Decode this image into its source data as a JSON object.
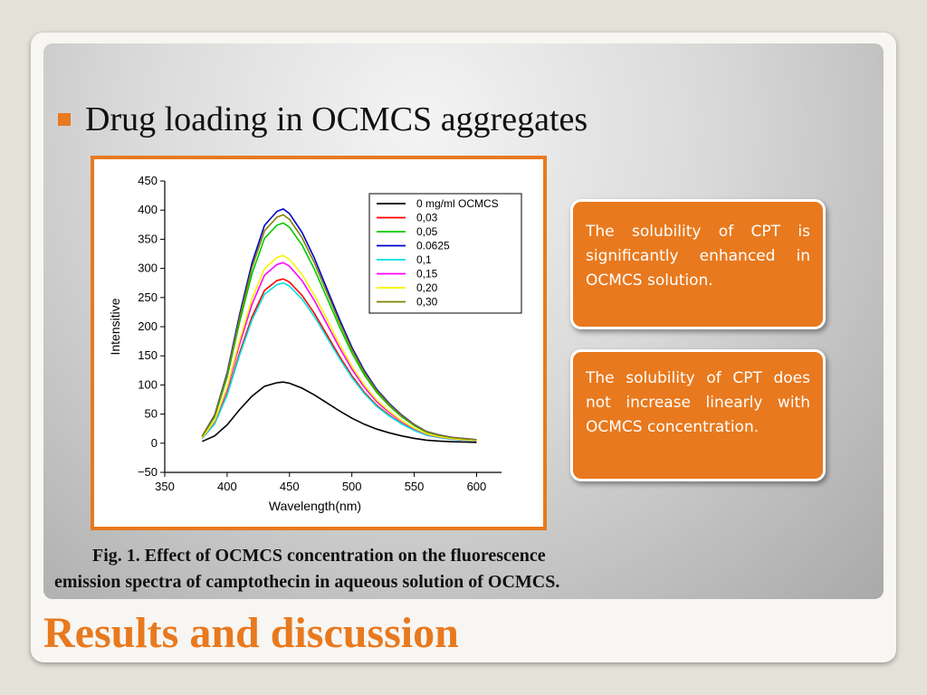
{
  "slide": {
    "bullet": "Drug loading in OCMCS aggregates",
    "callouts": [
      "The solubility of CPT is significantly enhanced in OCMCS solution.",
      "The solubility of CPT does not increase linearly with OCMCS concentration."
    ],
    "caption_line1": "Fig. 1. Effect of OCMCS concentration on the fluorescence",
    "caption_line2": "emission spectra of camptothecin in aqueous solution of OCMCS.",
    "title": "Results and discussion",
    "accent_color": "#e8791e"
  },
  "chart_data": {
    "type": "line",
    "xlabel": "Wavelength(nm)",
    "ylabel": "Intensitive",
    "xlim": [
      350,
      620
    ],
    "ylim": [
      -50,
      450
    ],
    "xticks": [
      350,
      400,
      450,
      500,
      550,
      600
    ],
    "yticks": [
      -50,
      0,
      50,
      100,
      150,
      200,
      250,
      300,
      350,
      400,
      450
    ],
    "x": [
      380,
      390,
      400,
      410,
      420,
      430,
      440,
      445,
      450,
      460,
      470,
      480,
      490,
      500,
      510,
      520,
      530,
      540,
      550,
      560,
      570,
      580,
      590,
      600
    ],
    "legend_position": "top-right",
    "grid": false,
    "series": [
      {
        "name": "0 mg/ml OCMCS",
        "color": "#000000",
        "peak": 105
      },
      {
        "name": "0,03",
        "color": "#ff0000",
        "peak": 282
      },
      {
        "name": "0,05",
        "color": "#00cc00",
        "peak": 378
      },
      {
        "name": "0.0625",
        "color": "#0000cc",
        "peak": 402
      },
      {
        "name": "0,1",
        "color": "#00e0e0",
        "peak": 275
      },
      {
        "name": "0,15",
        "color": "#ff00ff",
        "peak": 310
      },
      {
        "name": "0,20",
        "color": "#f5f500",
        "peak": 322
      },
      {
        "name": "0,30",
        "color": "#808000",
        "peak": 392
      }
    ],
    "shape": [
      3,
      12,
      30,
      55,
      77,
      93,
      99,
      100,
      98,
      90,
      79,
      66,
      53,
      41,
      31,
      23,
      17,
      12,
      8,
      5,
      3.5,
      2.5,
      2,
      1.5
    ]
  }
}
